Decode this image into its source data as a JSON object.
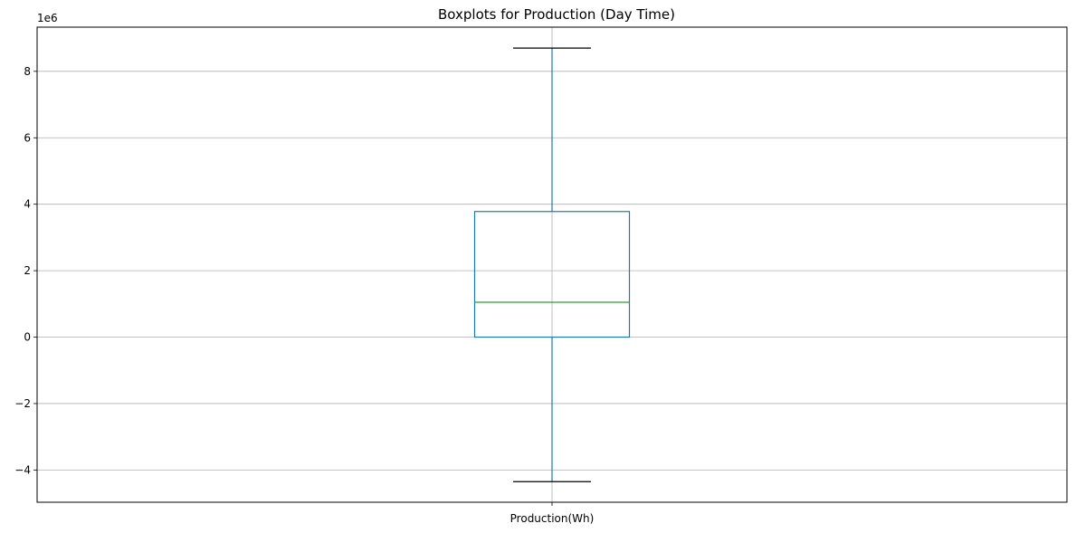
{
  "chart_data": {
    "type": "boxplot",
    "title": "Boxplots for Production (Day Time)",
    "categories": [
      "Production(Wh)"
    ],
    "axis_offset_label": "1e6",
    "boxes": [
      {
        "category": "Production(Wh)",
        "whisker_low": -4.35,
        "q1": 0.0,
        "median": 1.05,
        "q3": 3.78,
        "whisker_high": 8.7
      }
    ],
    "y_unit_multiplier": 1000000,
    "ylim": [
      -4.97,
      9.33
    ],
    "yticks": [
      -4,
      -2,
      0,
      2,
      4,
      6,
      8
    ],
    "ytick_labels": [
      "−4",
      "−2",
      "0",
      "2",
      "4",
      "6",
      "8"
    ],
    "grid": true,
    "colors": {
      "box": "#1f77b4",
      "median": "#2ca02c",
      "cap": "#000000",
      "grid": "#b0b0b0"
    }
  }
}
